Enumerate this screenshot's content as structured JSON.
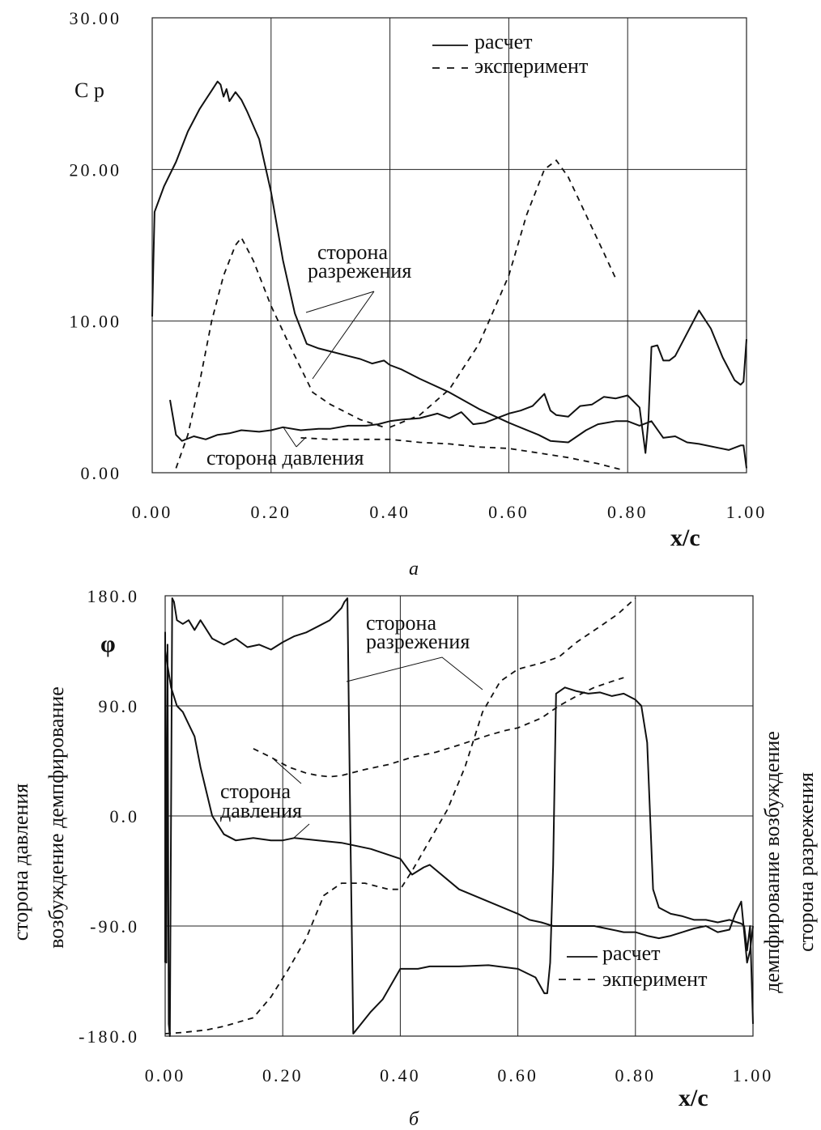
{
  "chart_data": [
    {
      "type": "line",
      "caption": "а",
      "ylabel": "C p",
      "xlabel": "x/c",
      "xlim": [
        0,
        1
      ],
      "ylim": [
        0,
        30
      ],
      "x_ticks": [
        "0.00",
        "0.20",
        "0.40",
        "0.60",
        "0.80",
        "1.00"
      ],
      "y_ticks": [
        "0.00",
        "10.00",
        "20.00",
        "30.00"
      ],
      "legend": {
        "calc": "расчет",
        "exp": "эксперимент"
      },
      "annotations": [
        "сторона",
        "разрежения",
        "сторона давления"
      ],
      "series": [
        {
          "name": "расчет",
          "style": "solid",
          "x": [
            0.0,
            0.002,
            0.004,
            0.02,
            0.04,
            0.06,
            0.08,
            0.1,
            0.11,
            0.115,
            0.12,
            0.125,
            0.13,
            0.14,
            0.15,
            0.16,
            0.18,
            0.2,
            0.22,
            0.24,
            0.26,
            0.28,
            0.3,
            0.33,
            0.35,
            0.37,
            0.39,
            0.4,
            0.42,
            0.45,
            0.5,
            0.55,
            0.6,
            0.65,
            0.67,
            0.7,
            0.73,
            0.75,
            0.78,
            0.8,
            0.82,
            0.84,
            0.86,
            0.88,
            0.9,
            0.92,
            0.97,
            0.99,
            0.995,
            1.0
          ],
          "y": [
            10.3,
            14.0,
            17.2,
            18.9,
            20.5,
            22.5,
            24.0,
            25.2,
            25.8,
            25.6,
            24.8,
            25.3,
            24.5,
            25.1,
            24.6,
            23.8,
            22.0,
            18.5,
            14.0,
            10.5,
            8.5,
            8.2,
            8.0,
            7.7,
            7.5,
            7.2,
            7.4,
            7.1,
            6.8,
            6.2,
            5.3,
            4.2,
            3.3,
            2.5,
            2.1,
            2.0,
            2.8,
            3.2,
            3.4,
            3.4,
            3.1,
            3.4,
            2.3,
            2.4,
            2.0,
            1.9,
            1.5,
            1.8,
            1.8,
            0.3
          ]
        },
        {
          "name": "расчет",
          "style": "solid",
          "x": [
            0.03,
            0.04,
            0.05,
            0.07,
            0.09,
            0.11,
            0.13,
            0.15,
            0.18,
            0.2,
            0.22,
            0.25,
            0.28,
            0.3,
            0.33,
            0.36,
            0.38,
            0.4,
            0.42,
            0.45,
            0.48,
            0.5,
            0.52,
            0.54,
            0.56,
            0.58,
            0.6,
            0.62,
            0.64,
            0.66,
            0.67,
            0.68,
            0.7,
            0.72,
            0.74,
            0.76,
            0.78,
            0.8,
            0.82,
            0.83,
            0.835,
            0.84,
            0.85,
            0.86,
            0.87,
            0.88,
            0.9,
            0.92,
            0.94,
            0.96,
            0.98,
            0.99,
            0.995,
            1.0
          ],
          "y": [
            4.8,
            2.5,
            2.1,
            2.4,
            2.2,
            2.5,
            2.6,
            2.8,
            2.7,
            2.8,
            3.0,
            2.8,
            2.9,
            2.9,
            3.1,
            3.1,
            3.2,
            3.4,
            3.5,
            3.6,
            3.9,
            3.6,
            4.0,
            3.2,
            3.3,
            3.6,
            3.9,
            4.1,
            4.4,
            5.2,
            4.1,
            3.8,
            3.7,
            4.4,
            4.5,
            5.0,
            4.9,
            5.1,
            4.3,
            1.3,
            3.5,
            8.3,
            8.4,
            7.4,
            7.4,
            7.7,
            9.2,
            10.7,
            9.5,
            7.6,
            6.1,
            5.8,
            6.0,
            8.8
          ]
        },
        {
          "name": "эксперимент",
          "style": "dashed",
          "x": [
            0.04,
            0.06,
            0.08,
            0.1,
            0.12,
            0.14,
            0.15,
            0.17,
            0.2,
            0.23,
            0.27,
            0.3,
            0.35,
            0.39
          ],
          "y": [
            0.3,
            2.5,
            6.0,
            10.0,
            13.0,
            15.0,
            15.5,
            14.0,
            11.0,
            8.5,
            5.3,
            4.5,
            3.5,
            3.0
          ]
        },
        {
          "name": "эксперимент",
          "style": "dashed",
          "x": [
            0.4,
            0.45,
            0.5,
            0.55,
            0.6,
            0.63,
            0.66,
            0.68,
            0.7,
            0.73,
            0.76,
            0.78
          ],
          "y": [
            3.0,
            3.8,
            5.5,
            8.5,
            13.0,
            17.0,
            20.0,
            20.6,
            19.5,
            17.0,
            14.5,
            12.8
          ]
        },
        {
          "name": "эксперимент",
          "style": "dashed",
          "x": [
            0.25,
            0.3,
            0.35,
            0.4,
            0.45,
            0.5,
            0.55,
            0.6,
            0.65,
            0.7,
            0.75,
            0.79
          ],
          "y": [
            2.3,
            2.2,
            2.2,
            2.2,
            2.0,
            1.9,
            1.7,
            1.6,
            1.3,
            1.0,
            0.6,
            0.2
          ]
        }
      ]
    },
    {
      "type": "line",
      "caption": "б",
      "ylabel": "φ",
      "xlabel": "x/c",
      "xlim": [
        0,
        1
      ],
      "ylim": [
        -180,
        180
      ],
      "x_ticks": [
        "0.00",
        "0.20",
        "0.40",
        "0.60",
        "0.80",
        "1.00"
      ],
      "y_ticks": [
        "180.0",
        "90.0",
        "0.0",
        "-90.0",
        "-180.0"
      ],
      "legend": {
        "calc": "расчет",
        "exp": "экперимент"
      },
      "annotations": [
        "сторона",
        "разрежения",
        "сторона",
        "давления"
      ],
      "side_labels": {
        "left_outer": "сторона давления",
        "left_inner": "возбуждение  демпфирование",
        "right_inner": "демпфирование  возбуждение",
        "right_outer": "сторона разрежения"
      },
      "series": [
        {
          "name": "расчет",
          "style": "solid",
          "x": [
            0.0,
            0.0,
            0.002,
            0.004,
            0.006,
            0.008,
            0.012,
            0.015,
            0.02,
            0.03,
            0.04,
            0.05,
            0.06,
            0.08,
            0.1,
            0.12,
            0.14,
            0.16,
            0.18,
            0.2,
            0.22,
            0.24,
            0.26,
            0.28,
            0.3,
            0.305,
            0.31,
            0.315,
            0.32,
            0.35,
            0.37,
            0.4,
            0.43,
            0.45,
            0.5,
            0.55,
            0.6,
            0.63,
            0.645,
            0.65,
            0.655,
            0.66,
            0.665,
            0.68,
            0.7,
            0.72,
            0.74,
            0.76,
            0.78,
            0.8,
            0.81,
            0.82,
            0.83,
            0.84,
            0.86,
            0.88,
            0.9,
            0.92,
            0.94,
            0.96,
            0.98,
            0.985,
            0.99,
            0.995,
            1.0
          ],
          "y": [
            -120,
            150,
            -120,
            140,
            -170,
            -180,
            178,
            175,
            160,
            157,
            160,
            152,
            160,
            145,
            140,
            145,
            138,
            140,
            136,
            142,
            147,
            150,
            155,
            160,
            170,
            175,
            178,
            -10,
            -178,
            -160,
            -150,
            -125,
            -125,
            -123,
            -123,
            -122,
            -125,
            -132,
            -145,
            -145,
            -120,
            -40,
            100,
            105,
            102,
            100,
            101,
            98,
            100,
            95,
            90,
            60,
            -60,
            -75,
            -80,
            -82,
            -85,
            -85,
            -87,
            -85,
            -88,
            -90,
            -110,
            -90,
            -170
          ]
        },
        {
          "name": "расчет",
          "style": "solid",
          "x": [
            0.0,
            0.01,
            0.02,
            0.03,
            0.04,
            0.05,
            0.06,
            0.08,
            0.1,
            0.12,
            0.15,
            0.18,
            0.2,
            0.22,
            0.26,
            0.3,
            0.35,
            0.4,
            0.42,
            0.44,
            0.45,
            0.5,
            0.55,
            0.6,
            0.62,
            0.64,
            0.66,
            0.7,
            0.73,
            0.76,
            0.78,
            0.8,
            0.82,
            0.84,
            0.86,
            0.88,
            0.9,
            0.92,
            0.94,
            0.96,
            0.97,
            0.98,
            0.985,
            0.99,
            0.995,
            1.0
          ],
          "y": [
            135,
            105,
            90,
            85,
            75,
            65,
            40,
            0,
            -15,
            -20,
            -18,
            -20,
            -20,
            -18,
            -20,
            -22,
            -27,
            -35,
            -48,
            -42,
            -40,
            -60,
            -70,
            -80,
            -85,
            -87,
            -90,
            -90,
            -90,
            -93,
            -95,
            -95,
            -98,
            -100,
            -98,
            -95,
            -92,
            -90,
            -95,
            -93,
            -80,
            -70,
            -95,
            -120,
            -110,
            -90
          ]
        },
        {
          "name": "экперимент",
          "style": "dashed",
          "x": [
            0.0,
            0.03,
            0.07,
            0.1,
            0.15,
            0.18,
            0.21,
            0.24,
            0.27,
            0.3,
            0.34,
            0.38,
            0.4,
            0.42,
            0.45,
            0.48,
            0.51,
            0.54,
            0.57,
            0.6,
            0.64,
            0.67,
            0.7,
            0.74,
            0.77,
            0.8
          ],
          "y": [
            -178,
            -177,
            -175,
            -172,
            -165,
            -148,
            -125,
            -100,
            -65,
            -55,
            -55,
            -60,
            -60,
            -45,
            -20,
            5,
            40,
            85,
            110,
            120,
            125,
            130,
            142,
            155,
            165,
            178
          ]
        },
        {
          "name": "экперимент",
          "style": "dashed",
          "x": [
            0.15,
            0.18,
            0.21,
            0.24,
            0.26,
            0.28,
            0.3,
            0.34,
            0.38,
            0.42,
            0.46,
            0.5,
            0.55,
            0.58,
            0.6,
            0.64,
            0.67,
            0.7,
            0.73,
            0.76,
            0.78
          ],
          "y": [
            55,
            48,
            40,
            35,
            33,
            32,
            33,
            38,
            42,
            48,
            52,
            58,
            66,
            70,
            72,
            80,
            90,
            98,
            105,
            110,
            113
          ]
        }
      ]
    }
  ]
}
